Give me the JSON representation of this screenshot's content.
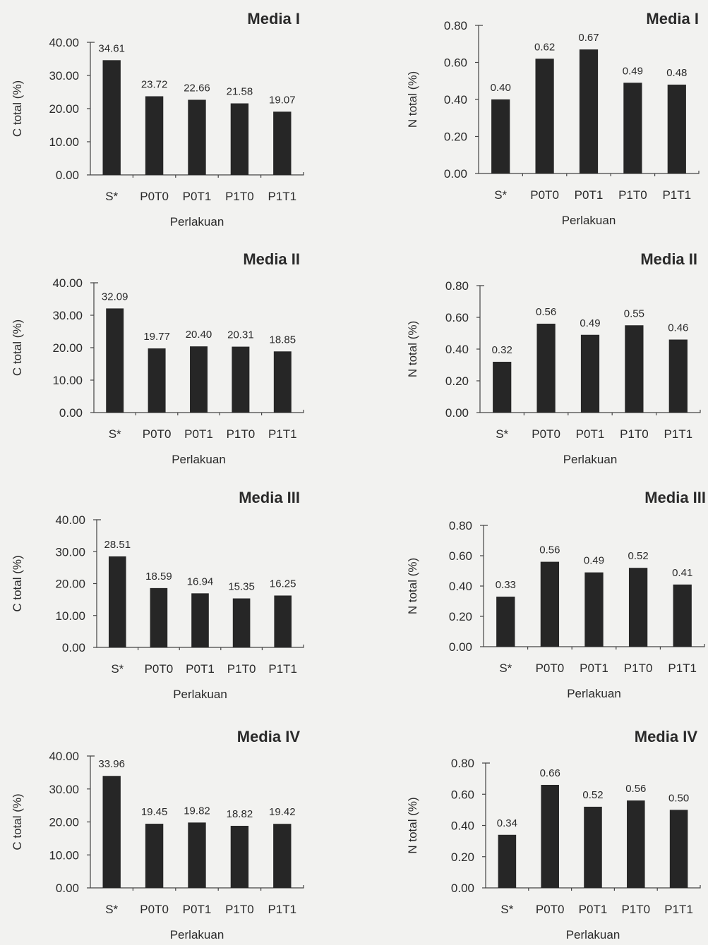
{
  "chart_data": [
    {
      "type": "bar",
      "title": "Media I",
      "xlabel": "Perlakuan",
      "ylabel": "C total (%)",
      "ylim": [
        0,
        40
      ],
      "yticks": [
        "0.00",
        "10.00",
        "20.00",
        "30.00",
        "40.00"
      ],
      "categories": [
        "S*",
        "P0T0",
        "P0T1",
        "P1T0",
        "P1T1"
      ],
      "values": [
        34.61,
        23.72,
        22.66,
        21.58,
        19.07
      ],
      "value_labels": [
        "34.61",
        "23.72",
        "22.66",
        "21.58",
        "19.07"
      ]
    },
    {
      "type": "bar",
      "title": "Media I",
      "xlabel": "Perlakuan",
      "ylabel": "N total (%)",
      "ylim": [
        0,
        0.8
      ],
      "yticks": [
        "0.00",
        "0.20",
        "0.40",
        "0.60",
        "0.80"
      ],
      "categories": [
        "S*",
        "P0T0",
        "P0T1",
        "P1T0",
        "P1T1"
      ],
      "values": [
        0.4,
        0.62,
        0.67,
        0.49,
        0.48
      ],
      "value_labels": [
        "0.40",
        "0.62",
        "0.67",
        "0.49",
        "0.48"
      ]
    },
    {
      "type": "bar",
      "title": "Media II",
      "xlabel": "Perlakuan",
      "ylabel": "C total (%)",
      "ylim": [
        0,
        40
      ],
      "yticks": [
        "0.00",
        "10.00",
        "20.00",
        "30.00",
        "40.00"
      ],
      "categories": [
        "S*",
        "P0T0",
        "P0T1",
        "P1T0",
        "P1T1"
      ],
      "values": [
        32.09,
        19.77,
        20.4,
        20.31,
        18.85
      ],
      "value_labels": [
        "32.09",
        "19.77",
        "20.40",
        "20.31",
        "18.85"
      ]
    },
    {
      "type": "bar",
      "title": "Media II",
      "xlabel": "Perlakuan",
      "ylabel": "N total (%)",
      "ylim": [
        0,
        0.8
      ],
      "yticks": [
        "0.00",
        "0.20",
        "0.40",
        "0.60",
        "0.80"
      ],
      "categories": [
        "S*",
        "P0T0",
        "P0T1",
        "P1T0",
        "P1T1"
      ],
      "values": [
        0.32,
        0.56,
        0.49,
        0.55,
        0.46
      ],
      "value_labels": [
        "0.32",
        "0.56",
        "0.49",
        "0.55",
        "0.46"
      ]
    },
    {
      "type": "bar",
      "title": "Media III",
      "xlabel": "Perlakuan",
      "ylabel": "C total (%)",
      "ylim": [
        0,
        40
      ],
      "yticks": [
        "0.00",
        "10.00",
        "20.00",
        "30.00",
        "40.00"
      ],
      "categories": [
        "S*",
        "P0T0",
        "P0T1",
        "P1T0",
        "P1T1"
      ],
      "values": [
        28.51,
        18.59,
        16.94,
        15.35,
        16.25
      ],
      "value_labels": [
        "28.51",
        "18.59",
        "16.94",
        "15.35",
        "16.25"
      ]
    },
    {
      "type": "bar",
      "title": "Media III",
      "xlabel": "Perlakuan",
      "ylabel": "N total (%)",
      "ylim": [
        0,
        0.8
      ],
      "yticks": [
        "0.00",
        "0.20",
        "0.40",
        "0.60",
        "0.80"
      ],
      "categories": [
        "S*",
        "P0T0",
        "P0T1",
        "P1T0",
        "P1T1"
      ],
      "values": [
        0.33,
        0.56,
        0.49,
        0.52,
        0.41
      ],
      "value_labels": [
        "0.33",
        "0.56",
        "0.49",
        "0.52",
        "0.41"
      ]
    },
    {
      "type": "bar",
      "title": "Media IV",
      "xlabel": "Perlakuan",
      "ylabel": "C total (%)",
      "ylim": [
        0,
        40
      ],
      "yticks": [
        "0.00",
        "10.00",
        "20.00",
        "30.00",
        "40.00"
      ],
      "categories": [
        "S*",
        "P0T0",
        "P0T1",
        "P1T0",
        "P1T1"
      ],
      "values": [
        33.96,
        19.45,
        19.82,
        18.82,
        19.42
      ],
      "value_labels": [
        "33.96",
        "19.45",
        "19.82",
        "18.82",
        "19.42"
      ]
    },
    {
      "type": "bar",
      "title": "Media IV",
      "xlabel": "Perlakuan",
      "ylabel": "N total (%)",
      "ylim": [
        0,
        0.8
      ],
      "yticks": [
        "0.00",
        "0.20",
        "0.40",
        "0.60",
        "0.80"
      ],
      "categories": [
        "S*",
        "P0T0",
        "P0T1",
        "P1T0",
        "P1T1"
      ],
      "values": [
        0.34,
        0.66,
        0.52,
        0.56,
        0.5
      ],
      "value_labels": [
        "0.34",
        "0.66",
        "0.52",
        "0.56",
        "0.50"
      ]
    }
  ]
}
